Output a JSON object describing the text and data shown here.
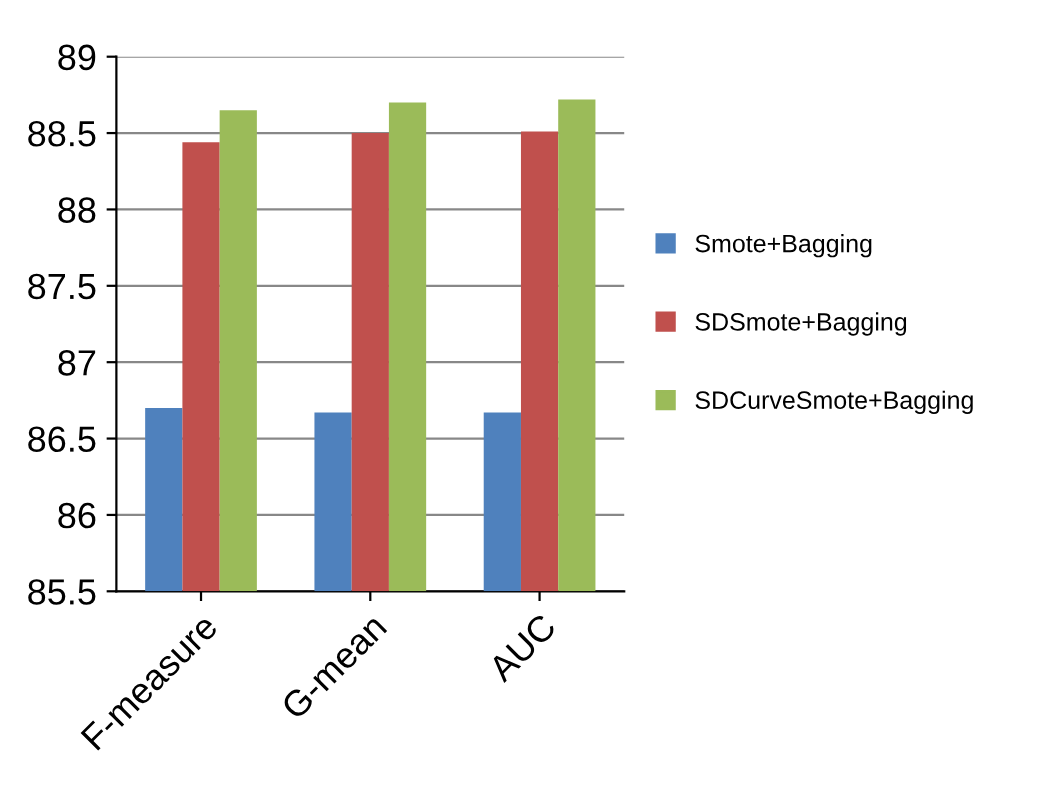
{
  "chart_data": {
    "type": "bar",
    "categories": [
      "F-measure",
      "G-mean",
      "AUC"
    ],
    "series": [
      {
        "name": "Smote+Bagging",
        "color": "#4f81bd",
        "values": [
          86.7,
          86.67,
          86.67
        ]
      },
      {
        "name": "SDSmote+Bagging",
        "color": "#c0504d",
        "values": [
          88.44,
          88.5,
          88.51
        ]
      },
      {
        "name": "SDCurveSmote+Bagging",
        "color": "#9bbb59",
        "values": [
          88.65,
          88.7,
          88.72
        ]
      }
    ],
    "ylim": [
      85.5,
      89
    ],
    "yticks": [
      85.5,
      86,
      86.5,
      87,
      87.5,
      88,
      88.5,
      89
    ],
    "grid": "y",
    "legend": "right"
  }
}
